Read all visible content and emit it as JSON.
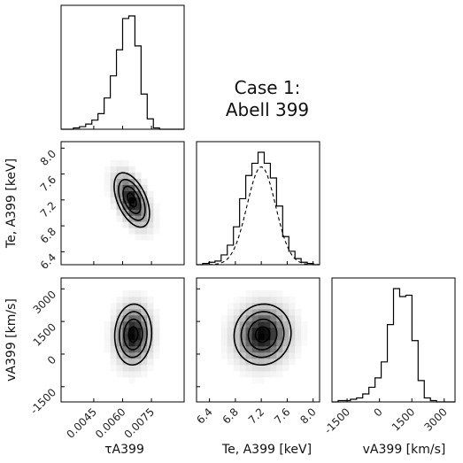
{
  "title": {
    "line1": "Case 1:",
    "line2": "Abell 399"
  },
  "chart_data": {
    "type": "corner",
    "parameters": [
      {
        "key": "tau",
        "label": "τ_A399",
        "display": "τA399",
        "unit": "",
        "ticks": [
          "0.0045",
          "0.0060",
          "0.0075"
        ],
        "tick_values": [
          0.0045,
          0.006,
          0.0075
        ],
        "range": [
          0.0028,
          0.0092
        ]
      },
      {
        "key": "te",
        "label": "T_e,A399 [keV]",
        "display": "Te, A399 [keV]",
        "unit": "keV",
        "ticks": [
          "6.4",
          "6.8",
          "7.2",
          "7.6",
          "8.0"
        ],
        "tick_values": [
          6.4,
          6.8,
          7.2,
          7.6,
          8.0
        ],
        "range": [
          6.2,
          8.1
        ]
      },
      {
        "key": "v",
        "label": "v_A399 [km/s]",
        "display": "vA399 [km/s]",
        "unit": "km/s",
        "ticks": [
          "-1500",
          "0",
          "1500",
          "3000"
        ],
        "tick_values": [
          -1500,
          0,
          1500,
          3000
        ],
        "range": [
          -2200,
          3500
        ]
      }
    ],
    "histograms": [
      {
        "param": "tau",
        "bin_edges": [
          0.0028,
          0.00312,
          0.00344,
          0.00376,
          0.00408,
          0.0044,
          0.00472,
          0.00504,
          0.00536,
          0.00568,
          0.006,
          0.00632,
          0.00664,
          0.00696,
          0.00728,
          0.0076,
          0.00792,
          0.00824,
          0.00856,
          0.00888,
          0.0092
        ],
        "counts": [
          0,
          0,
          1,
          2,
          4,
          7,
          12,
          24,
          41,
          61,
          85,
          87,
          64,
          27,
          8,
          1,
          0,
          0,
          0,
          0
        ]
      },
      {
        "param": "te",
        "bin_edges": [
          6.2,
          6.295,
          6.39,
          6.485,
          6.58,
          6.675,
          6.77,
          6.865,
          6.96,
          7.055,
          7.15,
          7.245,
          7.34,
          7.435,
          7.53,
          7.625,
          7.72,
          7.815,
          7.91,
          8.005,
          8.1
        ],
        "counts": [
          0,
          1,
          2,
          3,
          8,
          16,
          31,
          54,
          73,
          83,
          92,
          83,
          71,
          48,
          23,
          11,
          5,
          2,
          1,
          0
        ],
        "gaussian_fit": {
          "mean": 7.2,
          "sigma": 0.22,
          "peak": 80
        }
      },
      {
        "param": "v",
        "bin_edges": [
          -2200,
          -1915,
          -1630,
          -1345,
          -1060,
          -775,
          -490,
          -205,
          80,
          365,
          650,
          935,
          1220,
          1505,
          1790,
          2075,
          2360,
          2645,
          2930,
          3215,
          3500
        ],
        "counts": [
          0,
          1,
          1,
          2,
          3,
          6,
          11,
          18,
          30,
          58,
          85,
          79,
          80,
          46,
          16,
          3,
          1,
          0,
          0,
          0
        ]
      }
    ],
    "joint": [
      {
        "x": "tau",
        "y": "te",
        "peak": [
          0.00648,
          7.2
        ],
        "sigma": [
          0.00046,
          0.21
        ],
        "correlation": -0.5
      },
      {
        "x": "tau",
        "y": "v",
        "peak": [
          0.00655,
          900
        ],
        "sigma": [
          0.00048,
          700
        ],
        "correlation": 0.05
      },
      {
        "x": "te",
        "y": "v",
        "peak": [
          7.22,
          900
        ],
        "sigma": [
          0.22,
          700
        ],
        "correlation": 0.05
      }
    ],
    "contour_levels_sigma": [
      0.5,
      1.0,
      1.5,
      2.0
    ],
    "grid": false,
    "legend": "none"
  }
}
